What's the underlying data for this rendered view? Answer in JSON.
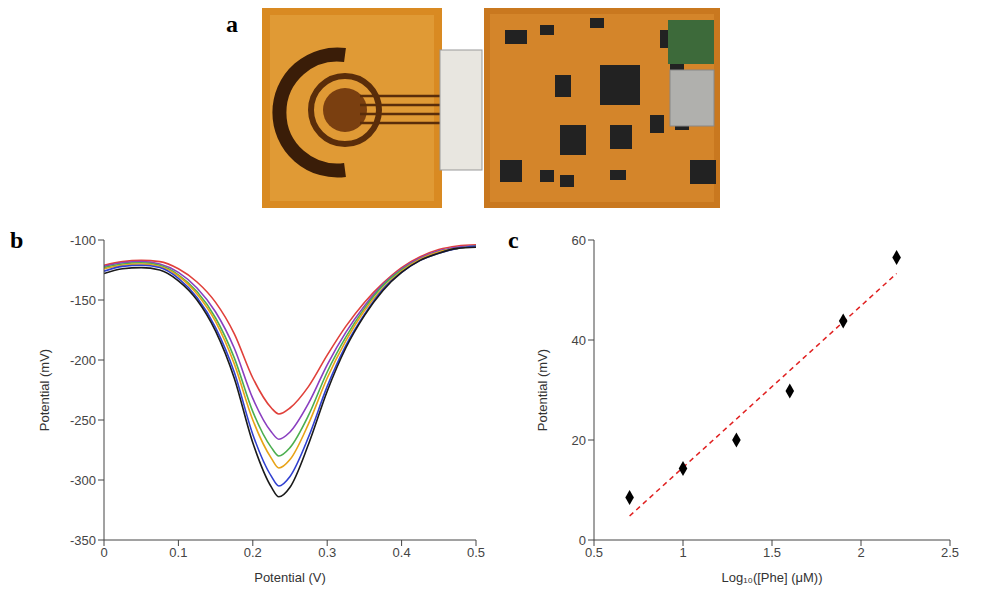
{
  "panel_a": {
    "label": "a"
  },
  "chart_data": [
    {
      "panel_label": "b",
      "type": "line",
      "x_label": "Potential (V)",
      "y_label": "Potential (mV)",
      "x": [
        0,
        0.025,
        0.05,
        0.075,
        0.1,
        0.125,
        0.15,
        0.175,
        0.2,
        0.225,
        0.235,
        0.25,
        0.275,
        0.3,
        0.325,
        0.35,
        0.375,
        0.4,
        0.425,
        0.45,
        0.475,
        0.5
      ],
      "series": [
        {
          "color": "#e0403a",
          "values": [
            -121,
            -118,
            -117,
            -118,
            -124,
            -135,
            -152,
            -178,
            -215,
            -240,
            -245,
            -240,
            -222,
            -196,
            -172,
            -152,
            -136,
            -123,
            -114,
            -108,
            -105,
            -104
          ]
        },
        {
          "color": "#8a3fc0",
          "values": [
            -122,
            -119,
            -118,
            -120,
            -127,
            -140,
            -160,
            -190,
            -232,
            -260,
            -266,
            -260,
            -236,
            -204,
            -177,
            -155,
            -137,
            -124,
            -115,
            -109,
            -106,
            -105
          ]
        },
        {
          "color": "#4caf50",
          "values": [
            -123,
            -120,
            -119,
            -121,
            -129,
            -143,
            -165,
            -198,
            -243,
            -273,
            -280,
            -273,
            -246,
            -210,
            -181,
            -157,
            -138,
            -125,
            -116,
            -110,
            -107,
            -105
          ]
        },
        {
          "color": "#e8a317",
          "values": [
            -124,
            -121,
            -120,
            -122,
            -130,
            -145,
            -168,
            -203,
            -250,
            -282,
            -290,
            -283,
            -253,
            -215,
            -184,
            -159,
            -140,
            -126,
            -116,
            -110,
            -107,
            -105
          ]
        },
        {
          "color": "#3040d0",
          "values": [
            -126,
            -122,
            -121,
            -123,
            -132,
            -148,
            -173,
            -210,
            -262,
            -297,
            -305,
            -297,
            -264,
            -222,
            -188,
            -162,
            -141,
            -127,
            -117,
            -111,
            -107,
            -105
          ]
        },
        {
          "color": "#1a1a1a",
          "values": [
            -128,
            -124,
            -123,
            -125,
            -134,
            -150,
            -176,
            -215,
            -269,
            -306,
            -314,
            -306,
            -270,
            -226,
            -190,
            -163,
            -142,
            -127,
            -117,
            -111,
            -107,
            -106
          ]
        }
      ],
      "xlim": [
        0,
        0.5
      ],
      "xticks": [
        0,
        0.1,
        0.2,
        0.3,
        0.4,
        0.5
      ],
      "ylim": [
        -350,
        -100
      ],
      "yticks": [
        -350,
        -300,
        -250,
        -200,
        -150,
        -100
      ],
      "grid": false
    },
    {
      "panel_label": "c",
      "type": "scatter",
      "x_label": "Log₁₀([Phe] (μM))",
      "y_label": "Potential (mV)",
      "x": [
        0.7,
        1.0,
        1.3,
        1.6,
        1.9,
        2.2
      ],
      "series": [
        {
          "type": "scatter",
          "color": "#000000",
          "marker": "diamond",
          "values": [
            8.5,
            14.3,
            20,
            29.8,
            43.8,
            56.5
          ]
        },
        {
          "type": "line",
          "color": "#e02020",
          "line_style": "dashed",
          "values": [
            4.8,
            null,
            null,
            null,
            null,
            53.3
          ]
        }
      ],
      "xlim": [
        0.5,
        2.5
      ],
      "xticks": [
        0.5,
        1,
        1.5,
        2,
        2.5
      ],
      "ylim": [
        0,
        60
      ],
      "yticks": [
        0,
        20,
        40,
        60
      ],
      "grid": false
    }
  ]
}
